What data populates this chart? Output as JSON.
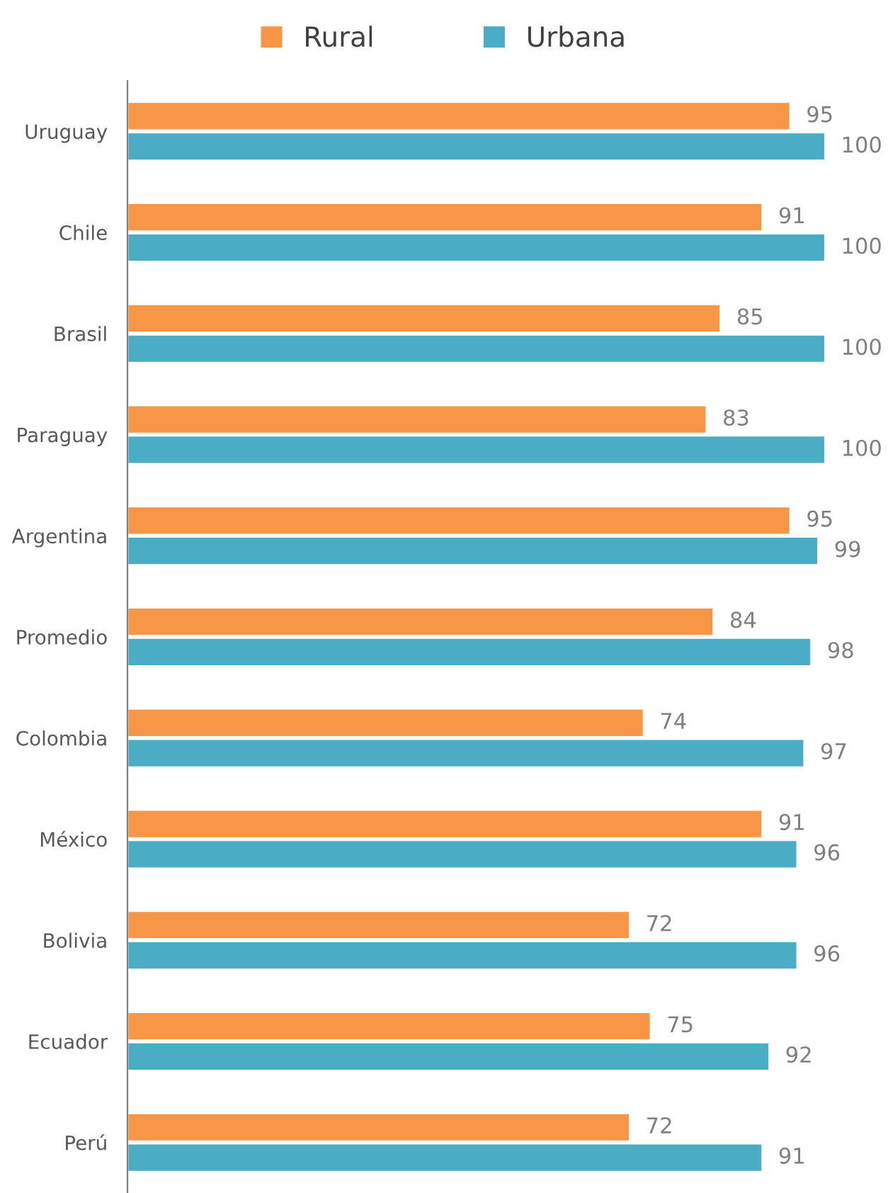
{
  "chart_data": {
    "type": "bar",
    "orientation": "horizontal",
    "categories": [
      "Uruguay",
      "Chile",
      "Brasil",
      "Paraguay",
      "Argentina",
      "Promedio",
      "Colombia",
      "México",
      "Bolivia",
      "Ecuador",
      "Perú"
    ],
    "series": [
      {
        "name": "Rural",
        "color": "#f79646",
        "values": [
          95,
          91,
          85,
          83,
          95,
          84,
          74,
          91,
          72,
          75,
          72
        ]
      },
      {
        "name": "Urbana",
        "color": "#4bacc6",
        "values": [
          100,
          100,
          100,
          100,
          99,
          98,
          97,
          96,
          96,
          92,
          91
        ]
      }
    ],
    "data_labels": true,
    "legend": "top",
    "grid": false
  }
}
